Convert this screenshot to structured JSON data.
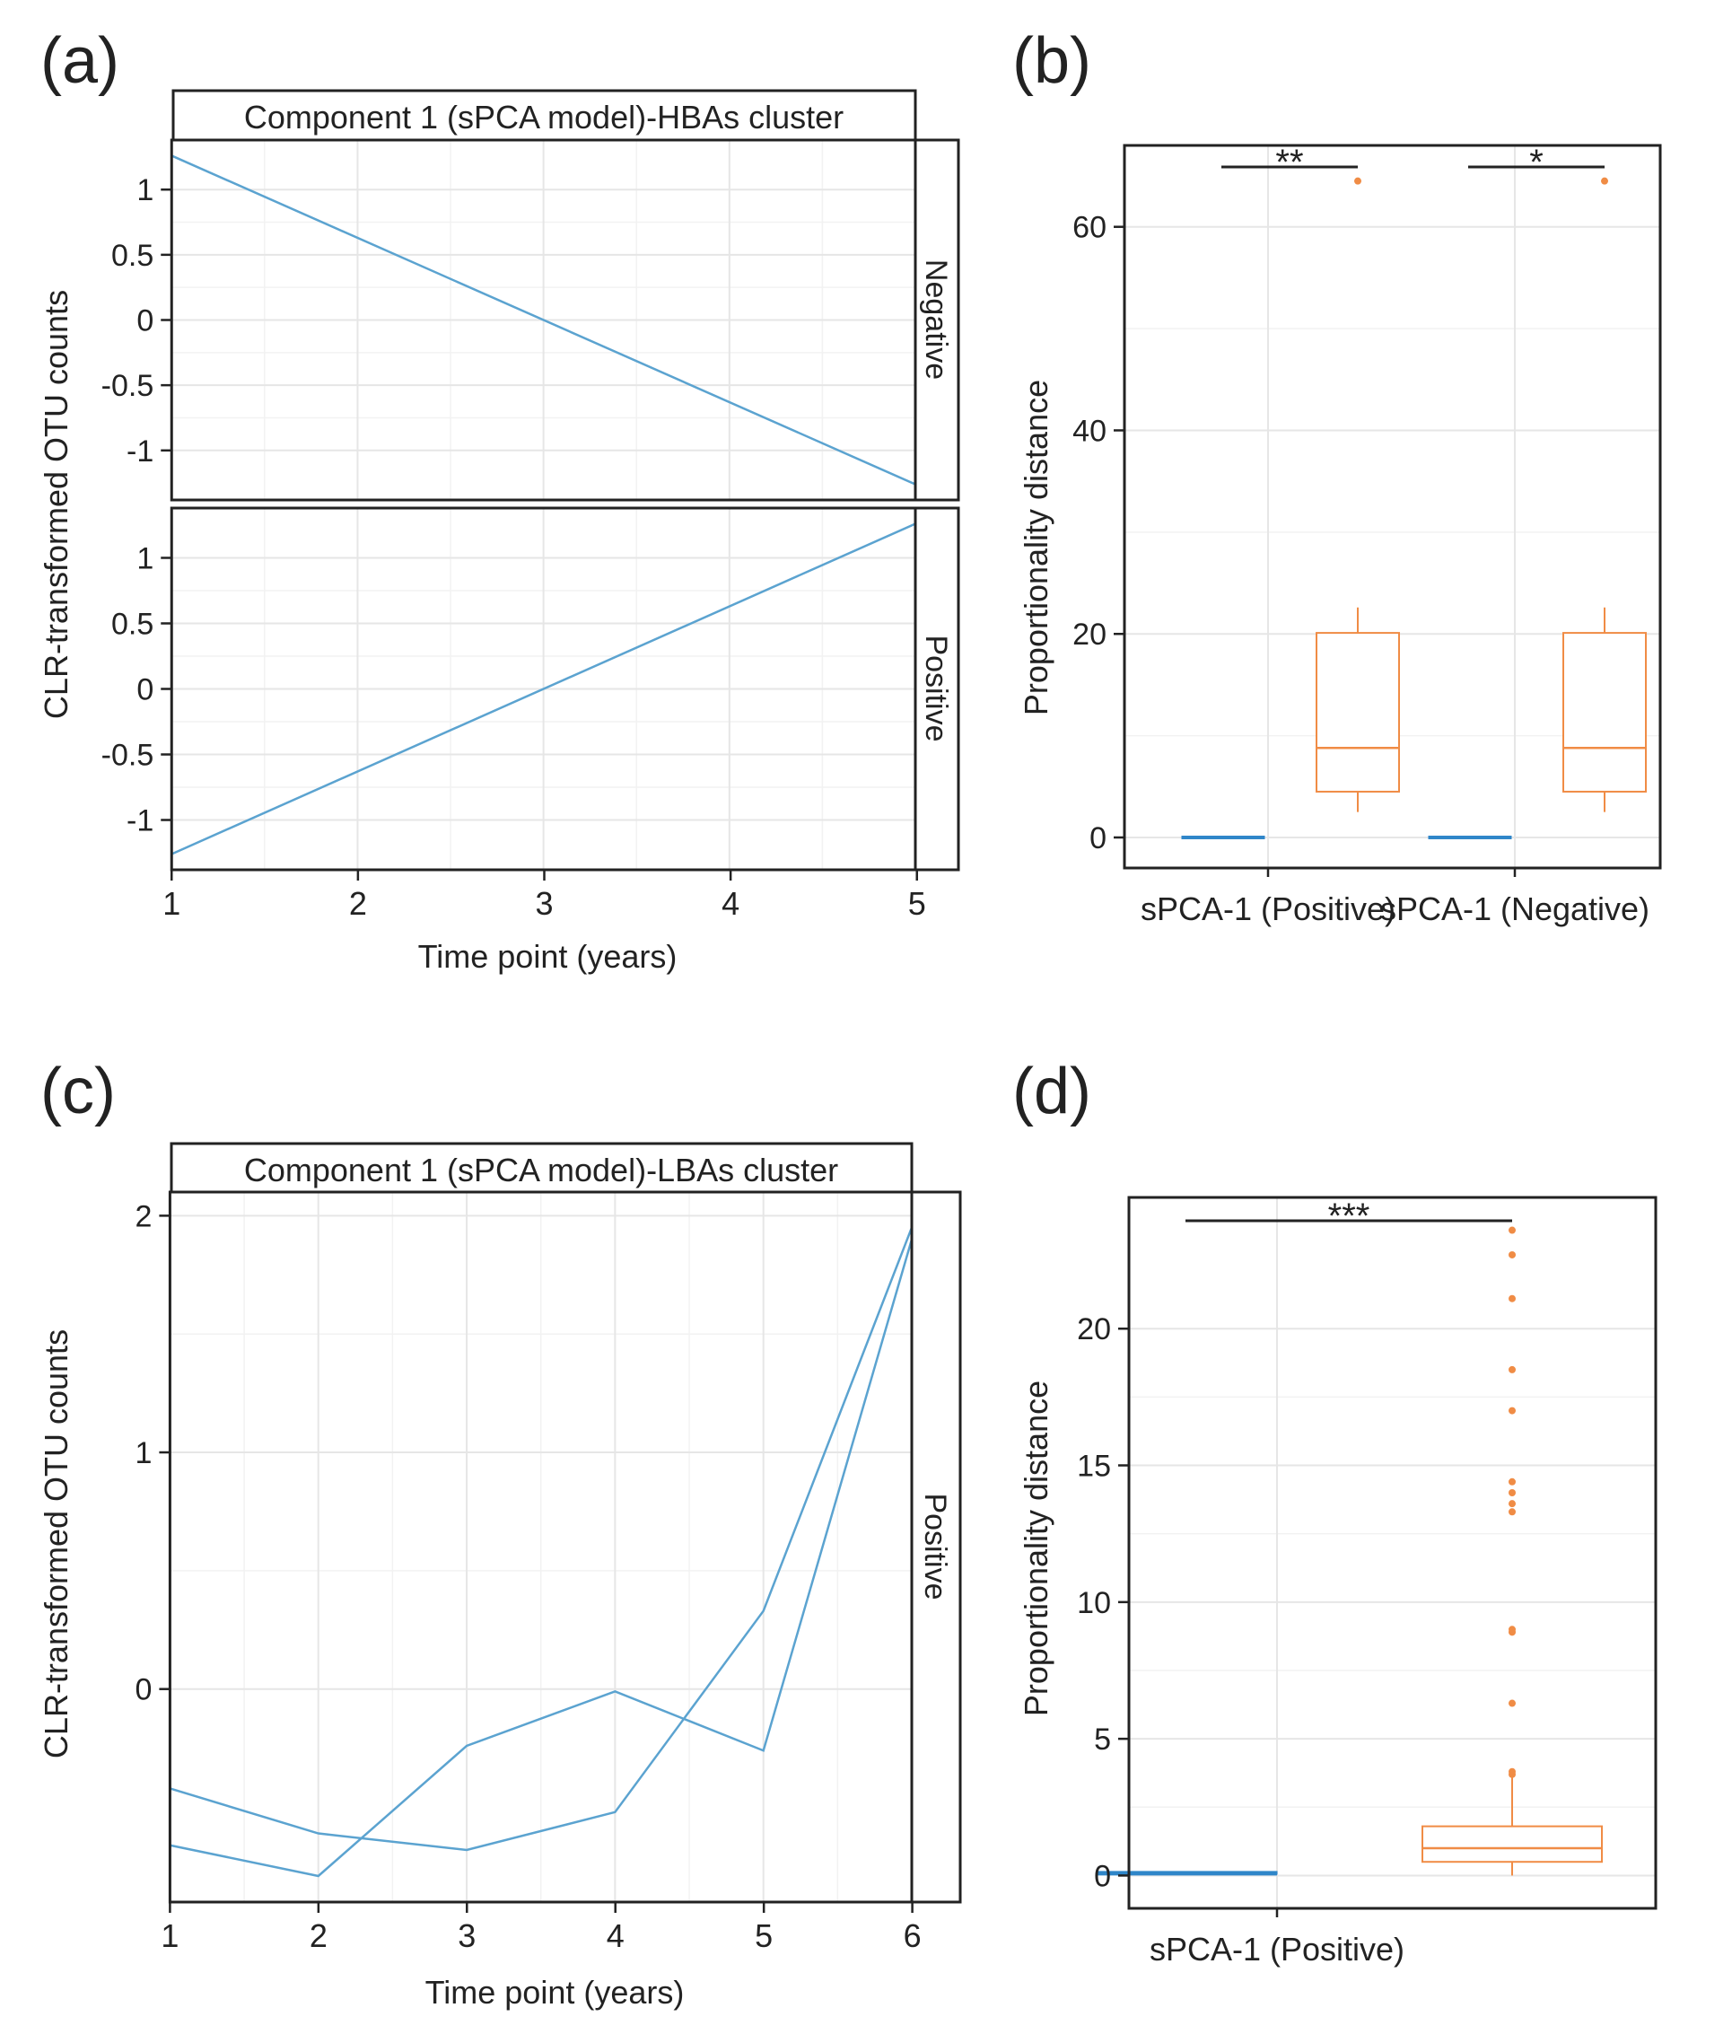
{
  "colors": {
    "line": "#5ba3d0",
    "blue_box": "#2f86c9",
    "orange": "#f08c45",
    "frame": "#222222",
    "grid_major": "#e6e6e6",
    "grid_minor": "#f2f2f2"
  },
  "chart_data": [
    {
      "panel": "(a)",
      "type": "line",
      "strip_title": "Component 1 (sPCA model)-HBAs cluster",
      "xlabel": "Time point (years)",
      "ylabel": "CLR-transformed OTU counts",
      "xlim": [
        1,
        5
      ],
      "xticks": [
        "1",
        "2",
        "3",
        "4",
        "5"
      ],
      "facets": [
        {
          "label": "Negative",
          "ylim": [
            -1.38,
            1.38
          ],
          "yticks": [
            {
              "v": 1,
              "label": "1"
            },
            {
              "v": 0.5,
              "label": "0.5"
            },
            {
              "v": 0,
              "label": "0"
            },
            {
              "v": -0.5,
              "label": "-0.5"
            },
            {
              "v": -1,
              "label": "-1"
            }
          ],
          "series": [
            {
              "x": [
                1,
                5
              ],
              "y": [
                1.26,
                -1.26
              ]
            }
          ]
        },
        {
          "label": "Positive",
          "ylim": [
            -1.38,
            1.38
          ],
          "yticks": [
            {
              "v": 1,
              "label": "1"
            },
            {
              "v": 0.5,
              "label": "0.5"
            },
            {
              "v": 0,
              "label": "0"
            },
            {
              "v": -0.5,
              "label": "-0.5"
            },
            {
              "v": -1,
              "label": "-1"
            }
          ],
          "series": [
            {
              "x": [
                1,
                5
              ],
              "y": [
                -1.26,
                1.26
              ]
            }
          ]
        }
      ]
    },
    {
      "panel": "(b)",
      "type": "box",
      "ylabel": "Proportionality distance",
      "ylim": [
        -3,
        68
      ],
      "yticks": [
        {
          "v": 0,
          "label": "0"
        },
        {
          "v": 20,
          "label": "20"
        },
        {
          "v": 40,
          "label": "40"
        },
        {
          "v": 60,
          "label": "60"
        }
      ],
      "groups": [
        {
          "label": "sPCA-1 (Positive)",
          "significance": "**",
          "blue": {
            "q1": 0,
            "median": 0,
            "q3": 0
          },
          "orange": {
            "whisker_low": 2.5,
            "q1": 4.5,
            "median": 8.8,
            "q3": 20.1,
            "whisker_high": 22.6,
            "outliers": [
              64.5
            ]
          }
        },
        {
          "label": "sPCA-1 (Negative)",
          "significance": "*",
          "blue": {
            "q1": 0,
            "median": 0,
            "q3": 0
          },
          "orange": {
            "whisker_low": 2.5,
            "q1": 4.5,
            "median": 8.8,
            "q3": 20.1,
            "whisker_high": 22.6,
            "outliers": [
              64.5
            ]
          }
        }
      ]
    },
    {
      "panel": "(c)",
      "type": "line",
      "strip_title": "Component 1 (sPCA model)-LBAs cluster",
      "xlabel": "Time point (years)",
      "ylabel": "CLR-transformed OTU counts",
      "xlim": [
        1,
        6
      ],
      "xticks": [
        "1",
        "2",
        "3",
        "4",
        "5",
        "6"
      ],
      "facets": [
        {
          "label": "Positive",
          "ylim": [
            -0.9,
            2.1
          ],
          "yticks": [
            {
              "v": 0,
              "label": "0"
            },
            {
              "v": 1,
              "label": "1"
            },
            {
              "v": 2,
              "label": "2"
            }
          ],
          "series": [
            {
              "x": [
                1,
                2,
                3,
                4,
                5,
                6
              ],
              "y": [
                -0.42,
                -0.61,
                -0.68,
                -0.52,
                0.33,
                1.95
              ]
            },
            {
              "x": [
                1,
                2,
                3,
                4,
                5,
                6
              ],
              "y": [
                -0.66,
                -0.79,
                -0.24,
                -0.01,
                -0.26,
                1.9
              ]
            }
          ]
        }
      ]
    },
    {
      "panel": "(d)",
      "type": "box",
      "ylabel": "Proportionality distance",
      "ylim": [
        -1.2,
        24.8
      ],
      "yticks": [
        {
          "v": 0,
          "label": "0"
        },
        {
          "v": 5,
          "label": "5"
        },
        {
          "v": 10,
          "label": "10"
        },
        {
          "v": 15,
          "label": "15"
        },
        {
          "v": 20,
          "label": "20"
        }
      ],
      "groups": [
        {
          "label": "sPCA-1 (Positive)",
          "significance": "***",
          "blue": {
            "q1": 0,
            "median": 0.05,
            "q3": 0.1
          },
          "orange": {
            "whisker_low": 0,
            "q1": 0.5,
            "median": 1.0,
            "q3": 1.8,
            "whisker_high": 3.9,
            "outliers": [
              3.7,
              3.8,
              6.3,
              8.9,
              9.0,
              13.3,
              13.6,
              14.0,
              14.4,
              17.0,
              18.5,
              21.1,
              22.7,
              23.6
            ]
          }
        }
      ]
    }
  ]
}
